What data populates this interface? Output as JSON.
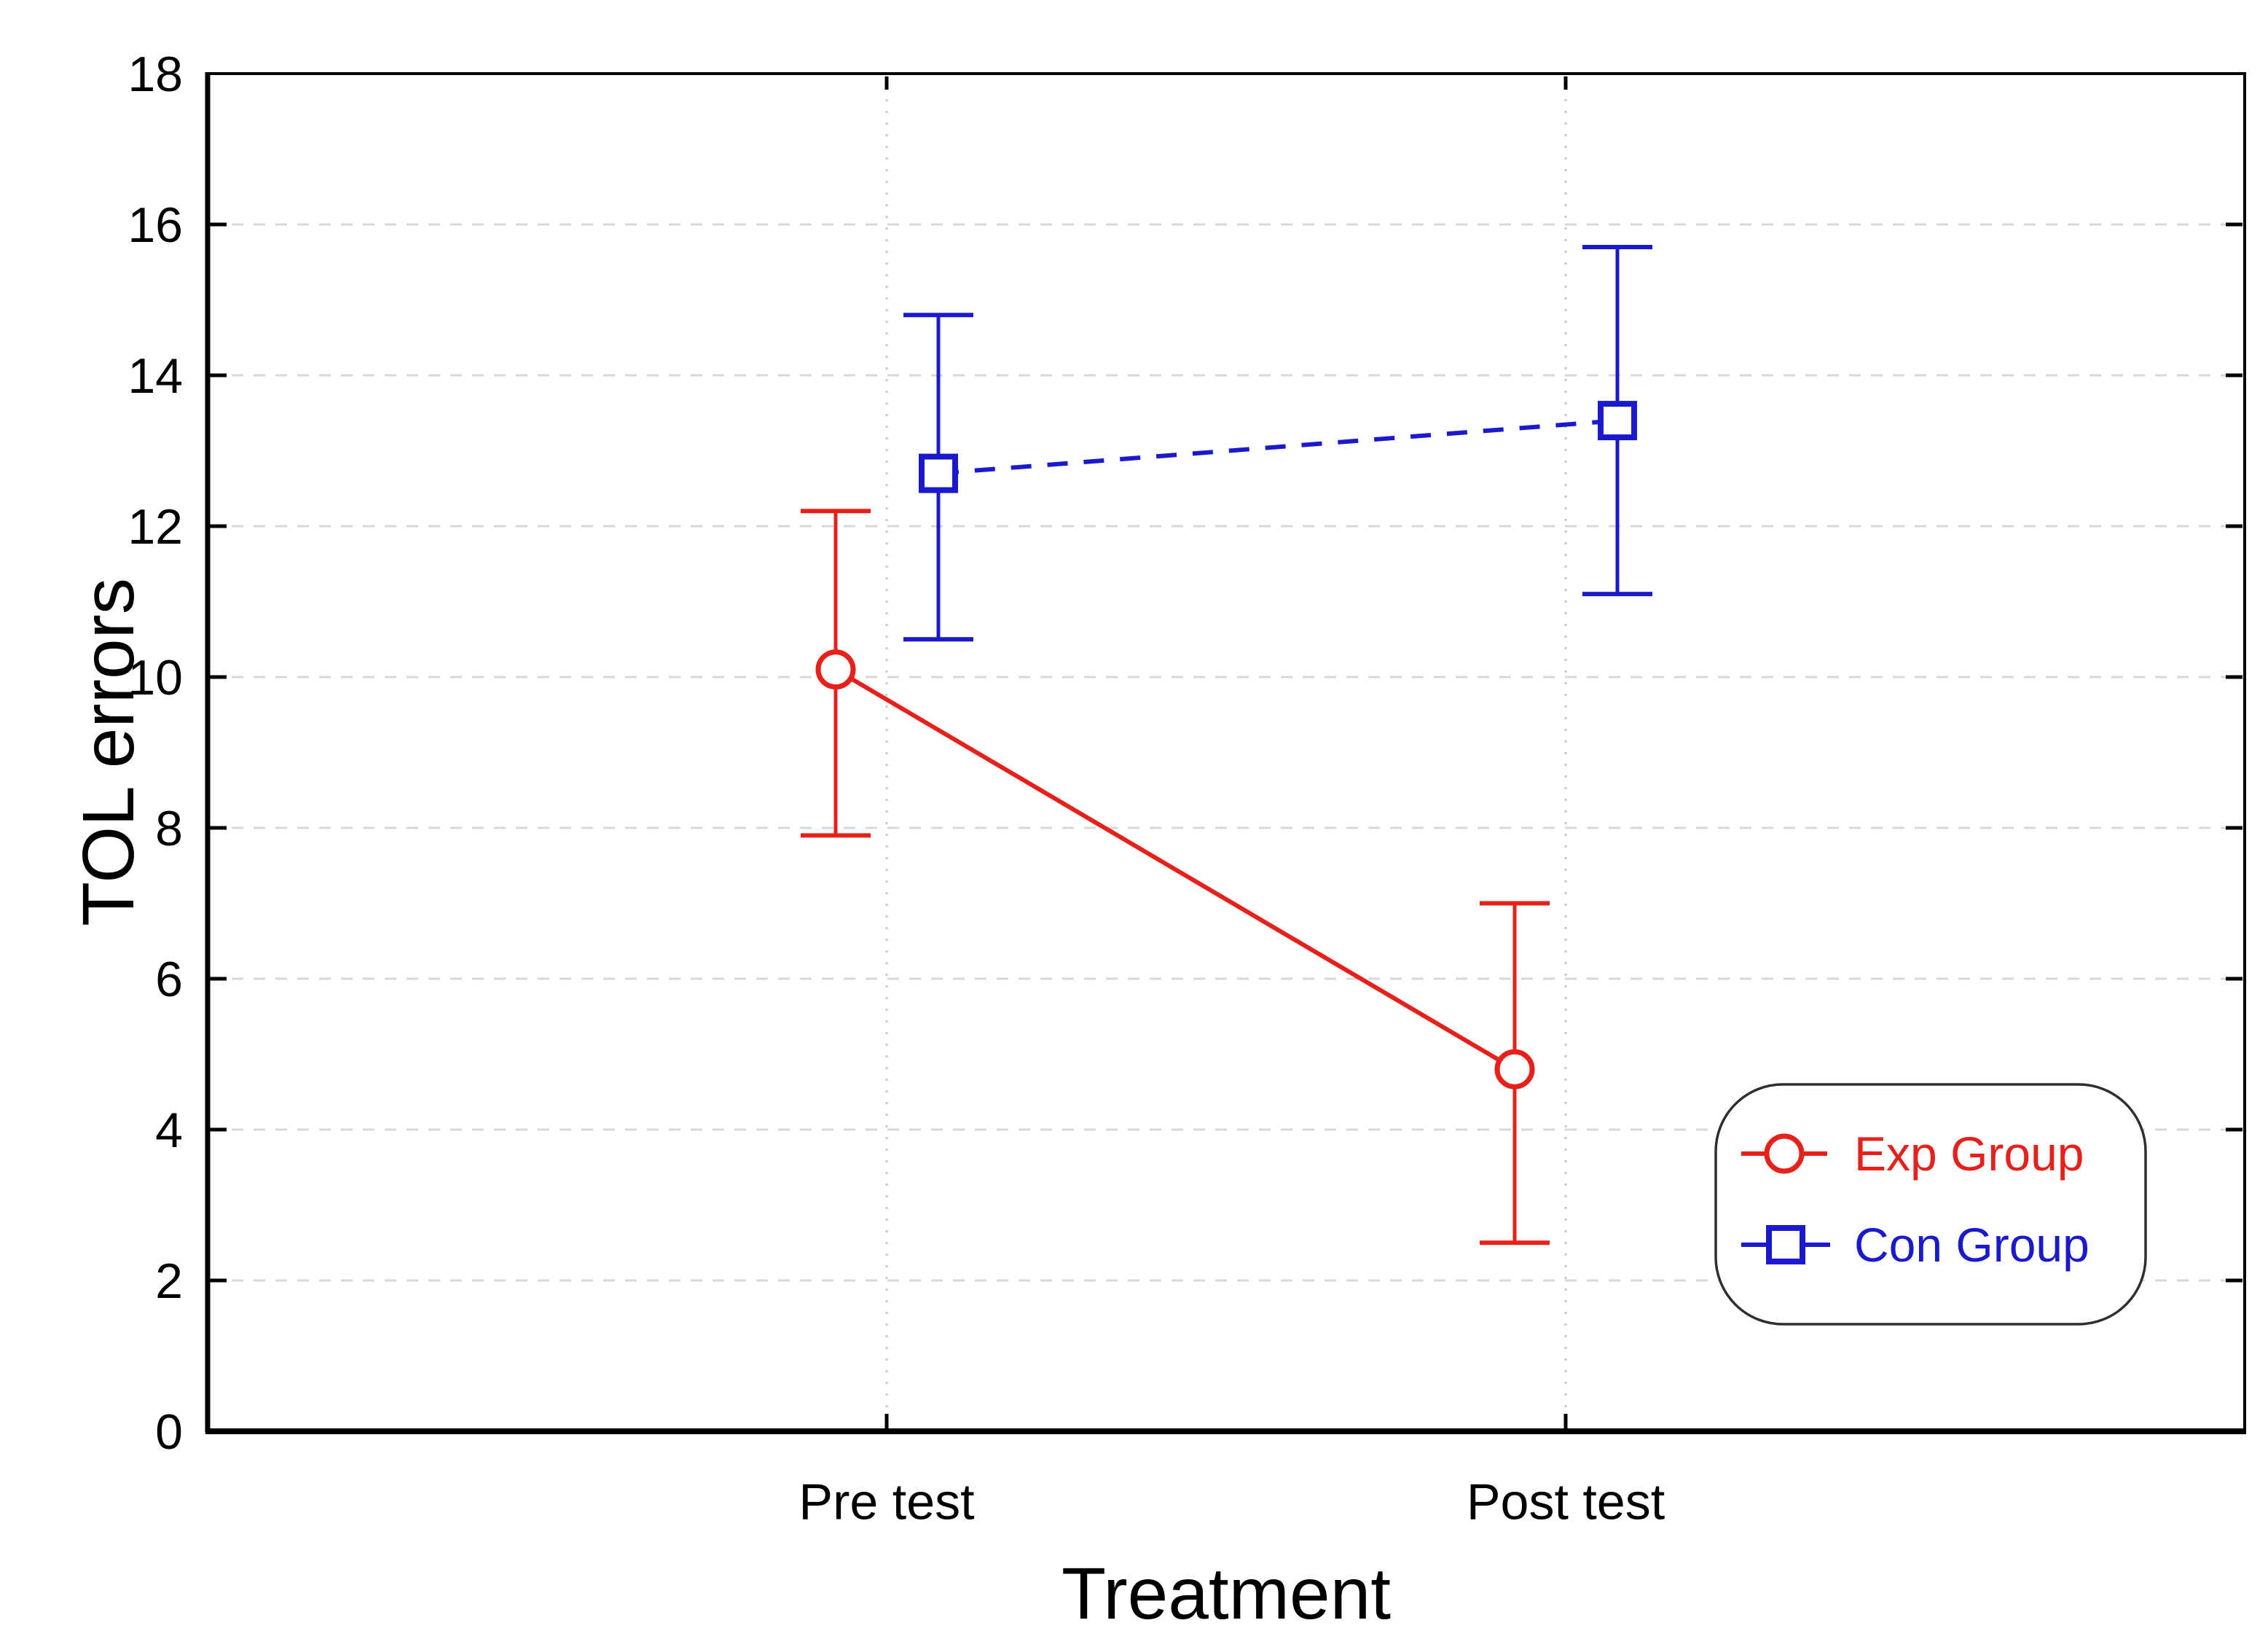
{
  "chart_data": {
    "type": "line",
    "title": "",
    "xlabel": "Treatment",
    "ylabel": "TOL errors",
    "categories": [
      "Pre test",
      "Post test"
    ],
    "ylim": [
      0,
      18
    ],
    "yticks": [
      0,
      2,
      4,
      6,
      8,
      10,
      12,
      14,
      16,
      18
    ],
    "grid": {
      "horizontal": true,
      "vertical": true
    },
    "legend": {
      "position": "bottom-right"
    },
    "axis_color": "#000000",
    "background": "#ffffff",
    "series": [
      {
        "name": "Exp Group",
        "color": "#e6211c",
        "marker": "circle",
        "line_style": "solid",
        "x_offset": "left",
        "points": [
          {
            "category": "Pre test",
            "value": 10.1,
            "upper": 12.2,
            "lower": 7.9
          },
          {
            "category": "Post test",
            "value": 4.8,
            "upper": 7.0,
            "lower": 2.5
          }
        ]
      },
      {
        "name": "Con Group",
        "color": "#1a1acc",
        "marker": "square",
        "line_style": "dashed",
        "x_offset": "right",
        "points": [
          {
            "category": "Pre test",
            "value": 12.7,
            "upper": 14.8,
            "lower": 10.5
          },
          {
            "category": "Post test",
            "value": 13.4,
            "upper": 15.7,
            "lower": 11.1
          }
        ]
      }
    ]
  }
}
